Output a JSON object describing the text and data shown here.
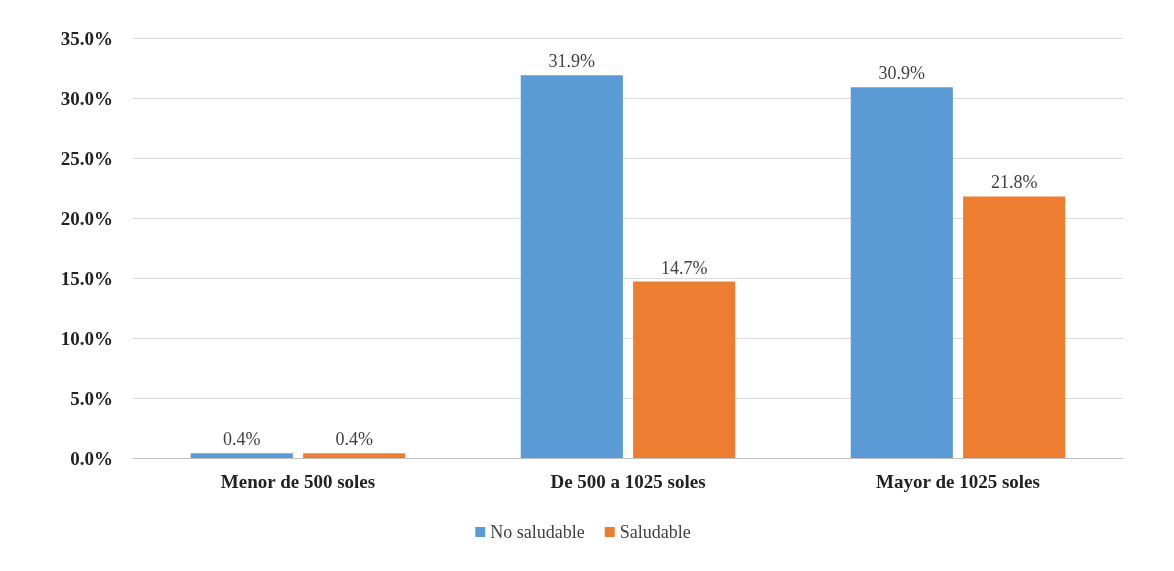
{
  "chart_data": {
    "type": "bar",
    "categories": [
      "Menor de 500 soles",
      "De 500 a 1025 soles",
      "Mayor de 1025 soles"
    ],
    "series": [
      {
        "name": "No saludable",
        "color": "#5b9bd5",
        "values": [
          0.4,
          31.9,
          30.9
        ],
        "value_labels": [
          "0.4%",
          "31.9%",
          "30.9%"
        ]
      },
      {
        "name": "Saludable",
        "color": "#ed7d31",
        "values": [
          0.4,
          14.7,
          21.8
        ],
        "value_labels": [
          "0.4%",
          "14.7%",
          "21.8%"
        ]
      }
    ],
    "ylim": [
      0,
      35
    ],
    "yticks": [
      {
        "value": 0,
        "label": "0.0%"
      },
      {
        "value": 5,
        "label": "5.0%"
      },
      {
        "value": 10,
        "label": "10.0%"
      },
      {
        "value": 15,
        "label": "15.0%"
      },
      {
        "value": 20,
        "label": "20.0%"
      },
      {
        "value": 25,
        "label": "25.0%"
      },
      {
        "value": 30,
        "label": "30.0%"
      },
      {
        "value": 35,
        "label": "35.0%"
      }
    ],
    "grid": "y",
    "legend": "bottom"
  }
}
